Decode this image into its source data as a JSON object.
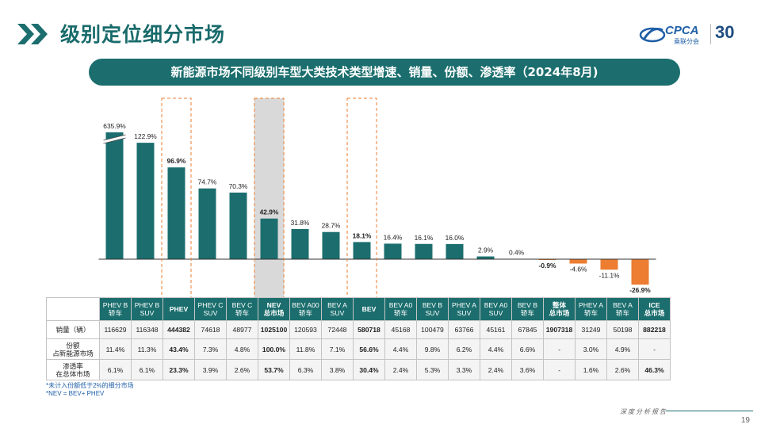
{
  "header": {
    "title": "级别定位细分市场",
    "subtitle": "新能源市场不同级别车型大类技术类型增速、销量、份额、渗透率（2024年8月)",
    "logo_text": "CPCA",
    "logo_cn": "乘联分会",
    "logo_30": "30"
  },
  "colors": {
    "teal": "#1c6e6e",
    "orange": "#ec7d31",
    "highlight_box": "#ec7d31",
    "nev_shade": "#d9d9d9"
  },
  "chart_data": {
    "type": "bar",
    "categories": [
      "PHEV B\n轿车",
      "PHEV B\nSUV",
      "PHEV",
      "PHEV C\nSUV",
      "BEV C\n轿车",
      "NEV\n总市场",
      "BEV A00\n轿车",
      "BEV A\nSUV",
      "BEV",
      "BEV A0\n轿车",
      "BEV B\nSUV",
      "PHEV A\nSUV",
      "BEV A0\nSUV",
      "BEV B\n轿车",
      "整体\n总市场",
      "PHEV A\n轿车",
      "BEV A\n轿车",
      "ICE\n总市场"
    ],
    "values": [
      635.9,
      122.9,
      96.9,
      74.7,
      70.3,
      42.9,
      31.8,
      28.7,
      18.1,
      16.4,
      16.1,
      16.0,
      2.9,
      0.4,
      -0.9,
      -4.6,
      -11.1,
      -26.9
    ],
    "value_labels": [
      "635.9%",
      "122.9%",
      "96.9%",
      "74.7%",
      "70.3%",
      "42.9%",
      "31.8%",
      "28.7%",
      "18.1%",
      "16.4%",
      "16.1%",
      "16.0%",
      "2.9%",
      "0.4%",
      "-0.9%",
      "-4.6%",
      "-11.1%",
      "-26.9%"
    ],
    "bold_labels": [
      false,
      false,
      true,
      false,
      false,
      true,
      false,
      false,
      true,
      false,
      false,
      false,
      false,
      false,
      true,
      false,
      false,
      true
    ],
    "axis_break": "first bar (635.9%) truncated with break mark",
    "highlighted_columns": [
      "PHEV",
      "NEV",
      "BEV"
    ],
    "shaded_column": "NEV",
    "negative_color": "orange",
    "ylim": [
      -30,
      140
    ]
  },
  "table": {
    "headers": [
      "PHEV B\n轿车",
      "PHEV B\nSUV",
      "PHEV",
      "PHEV C\nSUV",
      "BEV C\n轿车",
      "NEV\n总市场",
      "BEV A00\n轿车",
      "BEV A\nSUV",
      "BEV",
      "BEV A0\n轿车",
      "BEV B\nSUV",
      "PHEV A\nSUV",
      "BEV A0\nSUV",
      "BEV B\n轿车",
      "整体\n总市场",
      "PHEV A\n轿车",
      "BEV A\n轿车",
      "ICE\n总市场"
    ],
    "bold_headers": [
      false,
      false,
      true,
      false,
      false,
      true,
      false,
      false,
      true,
      false,
      false,
      false,
      false,
      false,
      true,
      false,
      false,
      true
    ],
    "rows": [
      {
        "label": "销量（辆）",
        "cells": [
          "116629",
          "116348",
          "444382",
          "74618",
          "48977",
          "1025100",
          "120593",
          "72448",
          "580718",
          "45168",
          "100479",
          "63766",
          "45161",
          "67845",
          "1907318",
          "31249",
          "50198",
          "882218"
        ],
        "bold": [
          false,
          false,
          true,
          false,
          false,
          true,
          false,
          false,
          true,
          false,
          false,
          false,
          false,
          false,
          true,
          false,
          false,
          true
        ]
      },
      {
        "label": "份额\n占新能源市场",
        "cells": [
          "11.4%",
          "11.3%",
          "43.4%",
          "7.3%",
          "4.8%",
          "100.0%",
          "11.8%",
          "7.1%",
          "56.6%",
          "4.4%",
          "9.8%",
          "6.2%",
          "4.4%",
          "6.6%",
          "-",
          "3.0%",
          "4.9%",
          "-"
        ],
        "bold": [
          false,
          false,
          true,
          false,
          false,
          true,
          false,
          false,
          true,
          false,
          false,
          false,
          false,
          false,
          false,
          false,
          false,
          false
        ]
      },
      {
        "label": "渗透率\n在总体市场",
        "cells": [
          "6.1%",
          "6.1%",
          "23.3%",
          "3.9%",
          "2.6%",
          "53.7%",
          "6.3%",
          "3.8%",
          "30.4%",
          "2.4%",
          "5.3%",
          "3.3%",
          "2.4%",
          "3.6%",
          "-",
          "1.6%",
          "2.6%",
          "46.3%"
        ],
        "bold": [
          false,
          false,
          true,
          false,
          false,
          true,
          false,
          false,
          true,
          false,
          false,
          false,
          false,
          false,
          false,
          false,
          false,
          true
        ]
      }
    ]
  },
  "footnotes": [
    "*未计入份额低于2%的细分市场",
    "*NEV = BEV+ PHEV"
  ],
  "footer": {
    "text": "深度分析报告",
    "page": "19"
  }
}
